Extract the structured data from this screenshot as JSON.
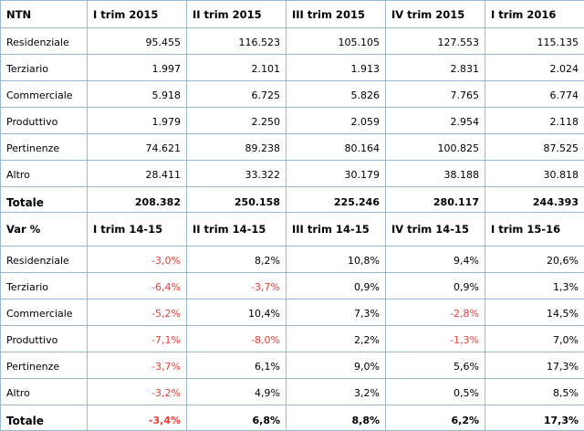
{
  "ntn": {
    "header": [
      "NTN",
      "I trim 2015",
      "II trim 2015",
      "III trim 2015",
      "IV trim 2015",
      "I trim 2016"
    ],
    "rows": [
      {
        "label": "Residenziale",
        "values": [
          "95.455",
          "116.523",
          "105.105",
          "127.553",
          "115.135"
        ]
      },
      {
        "label": "Terziario",
        "values": [
          "1.997",
          "2.101",
          "1.913",
          "2.831",
          "2.024"
        ]
      },
      {
        "label": "Commerciale",
        "values": [
          "5.918",
          "6.725",
          "5.826",
          "7.765",
          "6.774"
        ]
      },
      {
        "label": "Produttivo",
        "values": [
          "1.979",
          "2.250",
          "2.059",
          "2.954",
          "2.118"
        ]
      },
      {
        "label": "Pertinenze",
        "values": [
          "74.621",
          "89.238",
          "80.164",
          "100.825",
          "87.525"
        ]
      },
      {
        "label": "Altro",
        "values": [
          "28.411",
          "33.322",
          "30.179",
          "38.188",
          "30.818"
        ]
      }
    ],
    "total": {
      "label": "Totale",
      "values": [
        "208.382",
        "250.158",
        "225.246",
        "280.117",
        "244.393"
      ]
    }
  },
  "var": {
    "header": [
      "Var %",
      "I trim 14-15",
      "II trim 14-15",
      "III trim 14-15",
      "IV trim 14-15",
      "I trim 15-16"
    ],
    "rows": [
      {
        "label": "Residenziale",
        "values": [
          "-3,0%",
          "8,2%",
          "10,8%",
          "9,4%",
          "20,6%"
        ]
      },
      {
        "label": "Terziario",
        "values": [
          "-6,4%",
          "-3,7%",
          "0,9%",
          "0,9%",
          "1,3%"
        ]
      },
      {
        "label": "Commerciale",
        "values": [
          "-5,2%",
          "10,4%",
          "7,3%",
          "-2,8%",
          "14,5%"
        ]
      },
      {
        "label": "Produttivo",
        "values": [
          "-7,1%",
          "-8,0%",
          "2,2%",
          "-1,3%",
          "7,0%"
        ]
      },
      {
        "label": "Pertinenze",
        "values": [
          "-3,7%",
          "6,1%",
          "9,0%",
          "5,6%",
          "17,3%"
        ]
      },
      {
        "label": "Altro",
        "values": [
          "-3,2%",
          "4,9%",
          "3,2%",
          "0,5%",
          "8,5%"
        ]
      }
    ],
    "total": {
      "label": "Totale",
      "values": [
        "-3,4%",
        "6,8%",
        "8,8%",
        "6,2%",
        "17,3%"
      ]
    }
  },
  "colors": {
    "negative": "#e8403a",
    "border": "#9bb7d6",
    "text": "#000000"
  }
}
